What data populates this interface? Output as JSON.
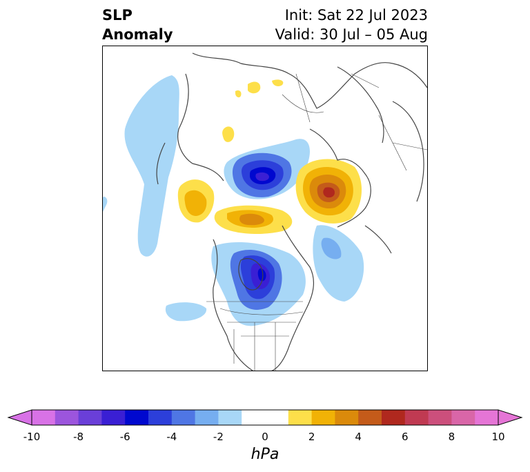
{
  "title": {
    "left_line1": "SLP",
    "left_line2": "Anomaly",
    "init": "Init: Sat 22 Jul 2023",
    "valid": "Valid: 30 Jul – 05 Aug"
  },
  "map": {
    "projection": "north-polar-stereographic",
    "anomaly_features": [
      {
        "label": "negative anomaly over Greenland / Arctic",
        "min_hPa": -7
      },
      {
        "label": "negative anomaly over Hudson Bay / central Canada",
        "min_hPa": -7
      },
      {
        "label": "positive anomaly over western Europe / Scandinavia",
        "max_hPa": 5
      },
      {
        "label": "positive anomaly over Siberia (Laptev side)",
        "max_hPa": 3
      },
      {
        "label": "positive anomaly near Alaska / Bering",
        "max_hPa": 3
      },
      {
        "label": "weak negative anomaly over N. Atlantic",
        "min_hPa": -3
      },
      {
        "label": "weak negative anomaly over N. Pacific",
        "min_hPa": -1
      }
    ]
  },
  "colorbar": {
    "unit": "hPa",
    "min": -10,
    "max": 10,
    "ticks": [
      "-10",
      "-8",
      "-6",
      "-4",
      "-2",
      "0",
      "2",
      "4",
      "6",
      "8",
      "10"
    ],
    "extend": "both",
    "colors": [
      "#d872e6",
      "#9c55dd",
      "#6a3fd8",
      "#3a1fd4",
      "#0008cf",
      "#2c3fda",
      "#4f76e4",
      "#76aef0",
      "#a8d7f7",
      "#ffffff",
      "#ffffff",
      "#fddf4a",
      "#f1b206",
      "#db8a0b",
      "#c45b1a",
      "#b0281e",
      "#c03a52",
      "#cc4f7c",
      "#d966a8",
      "#e575d6"
    ]
  }
}
